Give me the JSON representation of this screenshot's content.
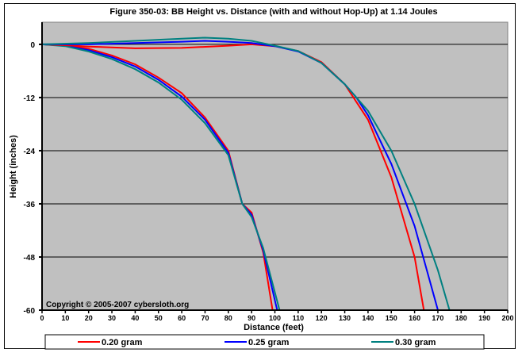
{
  "chart_data": {
    "type": "line",
    "title": "Figure 350-03:  BB Height vs. Distance (with and without Hop-Up) at 1.14 Joules",
    "xlabel": "Distance (feet)",
    "ylabel": "Height (inches)",
    "xlim": [
      0,
      200
    ],
    "ylim": [
      -60,
      5
    ],
    "xticks": [
      0,
      10,
      20,
      30,
      40,
      50,
      60,
      70,
      80,
      90,
      100,
      110,
      120,
      130,
      140,
      150,
      160,
      170,
      180,
      190,
      200
    ],
    "yticks": [
      0,
      -12,
      -24,
      -36,
      -48,
      -60
    ],
    "grid": "horizontal",
    "legend_position": "bottom",
    "annotation": "Copyright © 2005-2007 cybersloth.org",
    "series": [
      {
        "name": "0.20 gram",
        "color": "#ff0000",
        "variant": "no-hop",
        "x": [
          0,
          10,
          20,
          30,
          40,
          50,
          60,
          70,
          80,
          86,
          90,
          95,
          99
        ],
        "y": [
          0,
          -0.2,
          -1,
          -2.5,
          -4.5,
          -7.5,
          -11,
          -16.5,
          -24,
          -36,
          -38,
          -47,
          -60
        ]
      },
      {
        "name": "0.25 gram",
        "color": "#0000ff",
        "variant": "no-hop",
        "x": [
          0,
          10,
          20,
          30,
          40,
          50,
          60,
          70,
          80,
          86,
          90,
          95,
          101
        ],
        "y": [
          0,
          -0.3,
          -1.3,
          -2.9,
          -5,
          -8,
          -11.8,
          -17,
          -24.5,
          -36,
          -38.5,
          -46.5,
          -60
        ]
      },
      {
        "name": "0.30 gram",
        "color": "#008080",
        "variant": "no-hop",
        "x": [
          0,
          10,
          20,
          30,
          40,
          50,
          60,
          70,
          80,
          86,
          90,
          95,
          102
        ],
        "y": [
          0,
          -0.4,
          -1.6,
          -3.3,
          -5.6,
          -8.6,
          -12.5,
          -17.8,
          -25,
          -36,
          -39,
          -46,
          -60
        ]
      },
      {
        "name": "0.20 gram",
        "color": "#ff0000",
        "variant": "hop-up",
        "x": [
          0,
          10,
          20,
          40,
          60,
          80,
          90,
          100,
          110,
          120,
          130,
          140,
          150,
          160,
          164
        ],
        "y": [
          0,
          -0.2,
          -0.5,
          -0.9,
          -0.8,
          -0.3,
          0,
          -0.4,
          -1.5,
          -4,
          -9,
          -17,
          -30,
          -48,
          -60
        ]
      },
      {
        "name": "0.25 gram",
        "color": "#0000ff",
        "variant": "hop-up",
        "x": [
          0,
          20,
          40,
          60,
          70,
          80,
          90,
          100,
          110,
          120,
          130,
          135,
          140,
          150,
          160,
          170
        ],
        "y": [
          0,
          0,
          0.3,
          0.6,
          0.8,
          0.6,
          0.3,
          -0.4,
          -1.6,
          -4.2,
          -9,
          -12,
          -16,
          -27,
          -41,
          -60
        ]
      },
      {
        "name": "0.30 gram",
        "color": "#008080",
        "variant": "hop-up",
        "x": [
          0,
          20,
          40,
          60,
          70,
          80,
          90,
          100,
          110,
          120,
          130,
          135,
          140,
          150,
          160,
          170,
          175
        ],
        "y": [
          0,
          0.3,
          0.8,
          1.3,
          1.5,
          1.3,
          0.8,
          -0.3,
          -1.5,
          -4.2,
          -9,
          -12,
          -15,
          -24,
          -36,
          -51,
          -60
        ]
      }
    ]
  }
}
